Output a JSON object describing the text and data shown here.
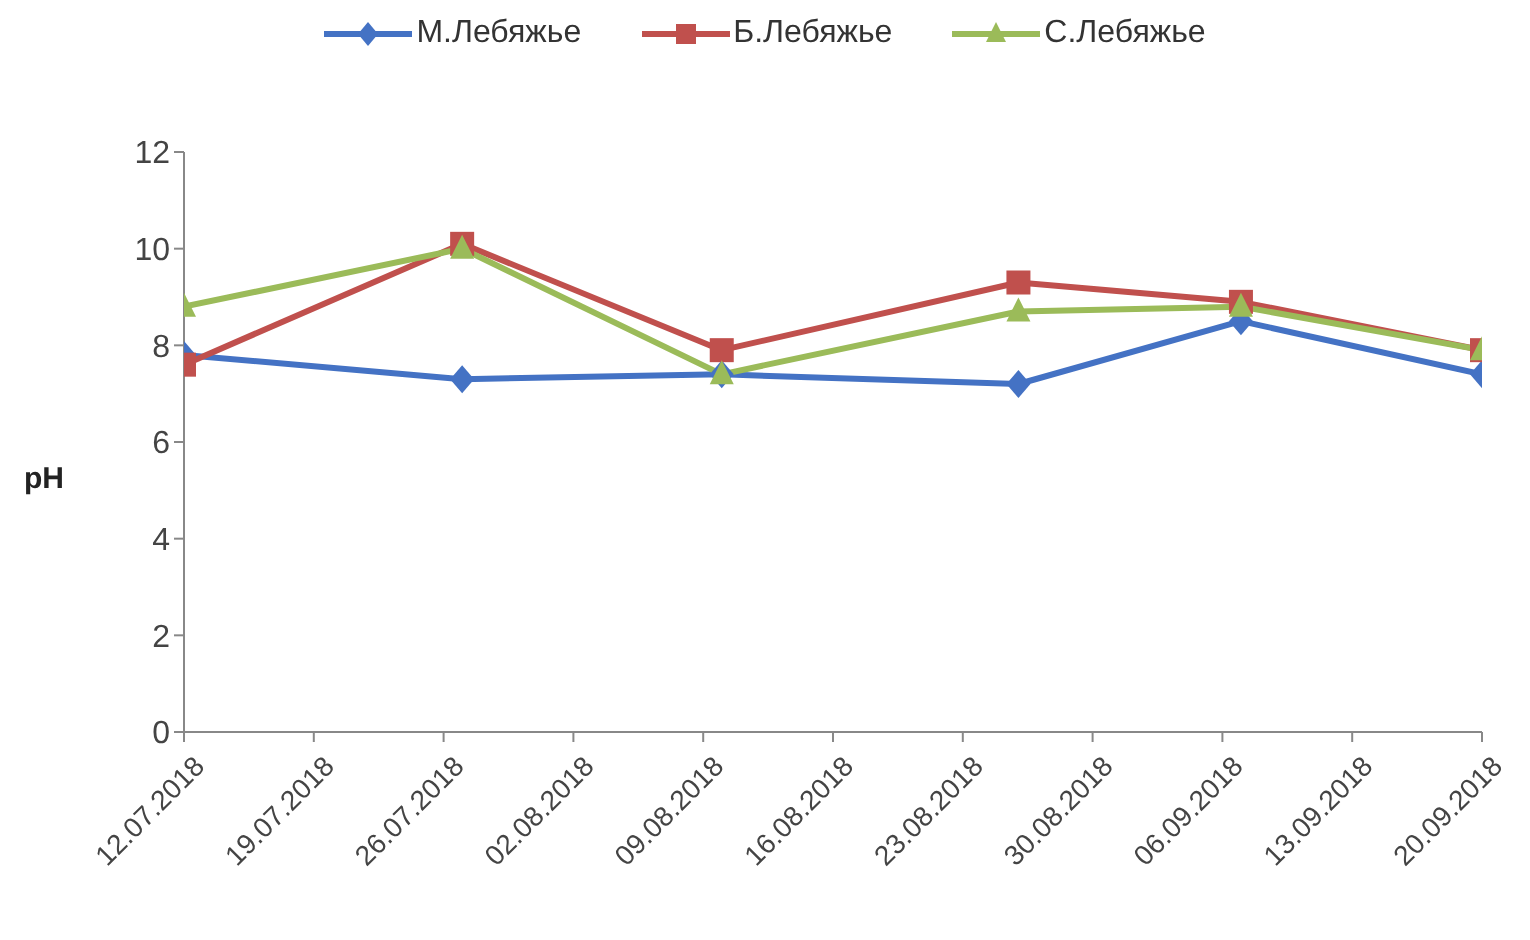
{
  "chart_data": {
    "type": "line",
    "ylabel": "pH",
    "x": [
      "2018-07-12",
      "2018-07-27",
      "2018-08-10",
      "2018-08-26",
      "2018-09-07",
      "2018-09-20"
    ],
    "series": [
      {
        "name": "М.Лебяжье",
        "color": "#4472c4",
        "marker": "diamond",
        "values": [
          7.8,
          7.3,
          7.4,
          7.2,
          8.5,
          7.4
        ]
      },
      {
        "name": "Б.Лебяжье",
        "color": "#c0504d",
        "marker": "square",
        "values": [
          7.6,
          10.1,
          7.9,
          9.3,
          8.9,
          7.9
        ]
      },
      {
        "name": "С.Лебяжье",
        "color": "#9bbb59",
        "marker": "triangle",
        "values": [
          8.8,
          10.0,
          7.4,
          8.7,
          8.8,
          7.9
        ]
      }
    ],
    "xlim": [
      "2018-07-12",
      "2018-09-20"
    ],
    "xticks": [
      {
        "value": "2018-07-12",
        "label": "12.07.2018"
      },
      {
        "value": "2018-07-19",
        "label": "19.07.2018"
      },
      {
        "value": "2018-07-26",
        "label": "26.07.2018"
      },
      {
        "value": "2018-08-02",
        "label": "02.08.2018"
      },
      {
        "value": "2018-08-09",
        "label": "09.08.2018"
      },
      {
        "value": "2018-08-16",
        "label": "16.08.2018"
      },
      {
        "value": "2018-08-23",
        "label": "23.08.2018"
      },
      {
        "value": "2018-08-30",
        "label": "30.08.2018"
      },
      {
        "value": "2018-09-06",
        "label": "06.09.2018"
      },
      {
        "value": "2018-09-13",
        "label": "13.09.2018"
      },
      {
        "value": "2018-09-20",
        "label": "20.09.2018"
      }
    ],
    "ylim": [
      0,
      12
    ],
    "yticks": [
      0,
      2,
      4,
      6,
      8,
      10,
      12
    ],
    "legend": "top",
    "line_style": "solid"
  }
}
